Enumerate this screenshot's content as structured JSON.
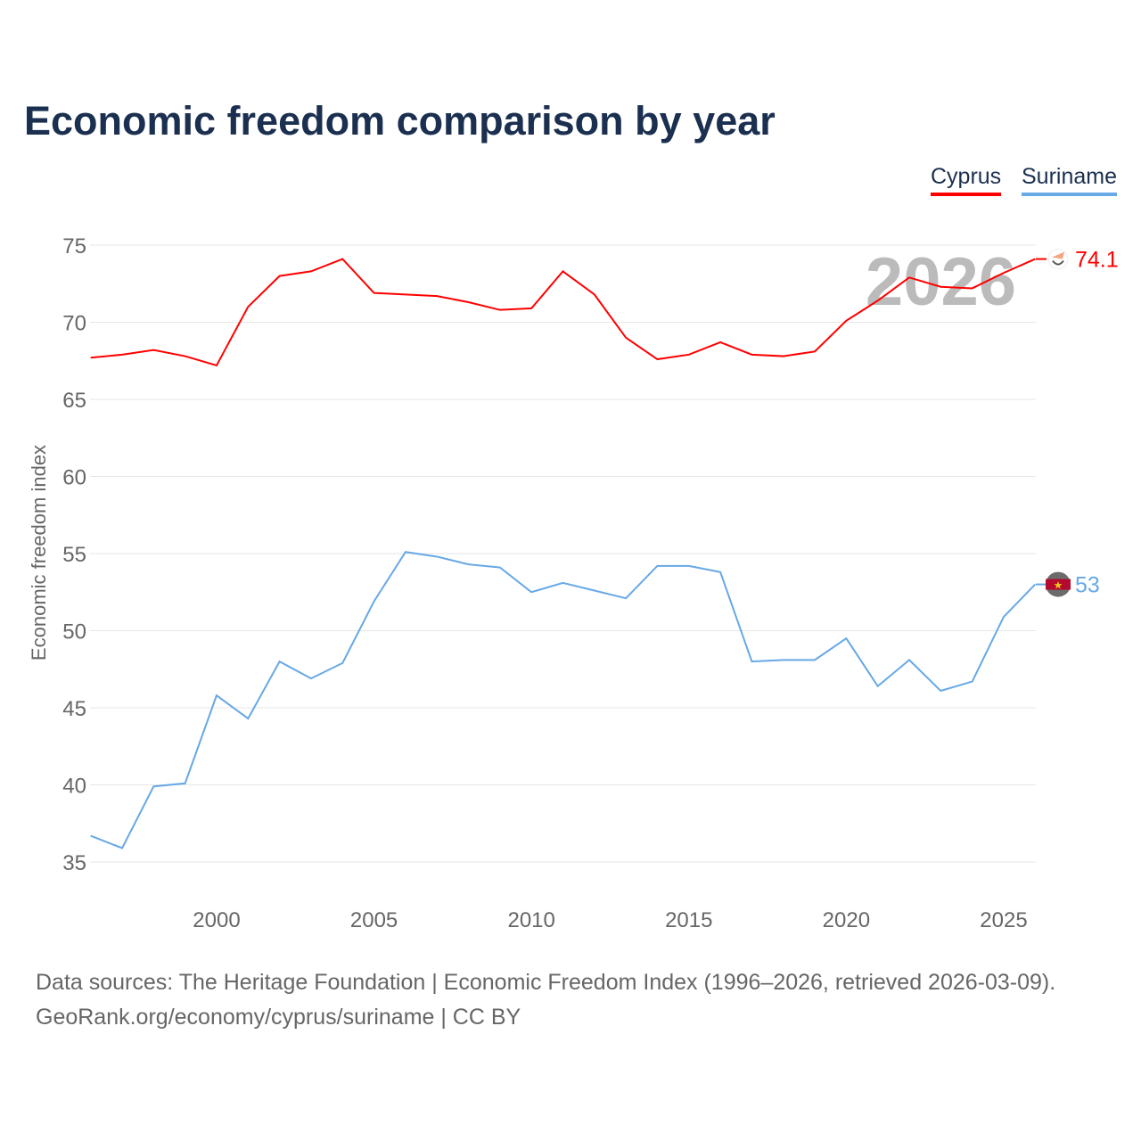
{
  "chart_data": {
    "type": "line",
    "title": "Economic freedom comparison by year",
    "xlabel": "",
    "ylabel": "Economic freedom index",
    "xlim": [
      1996,
      2026
    ],
    "ylim": [
      33,
      76
    ],
    "yticks": [
      35,
      40,
      45,
      50,
      55,
      60,
      65,
      70,
      75
    ],
    "xticks": [
      2000,
      2005,
      2010,
      2015,
      2020,
      2025
    ],
    "grid": true,
    "legend_position": "top-right",
    "watermark_year": "2026",
    "x": [
      1996,
      1997,
      1998,
      1999,
      2000,
      2001,
      2002,
      2003,
      2004,
      2005,
      2006,
      2007,
      2008,
      2009,
      2010,
      2011,
      2012,
      2013,
      2014,
      2015,
      2016,
      2017,
      2018,
      2019,
      2020,
      2021,
      2022,
      2023,
      2024,
      2025,
      2026
    ],
    "series": [
      {
        "name": "Cyprus",
        "color": "#ff0000",
        "end_label": "74.1",
        "values": [
          67.7,
          67.9,
          68.2,
          67.8,
          67.2,
          71.0,
          73.0,
          73.3,
          74.1,
          71.9,
          71.8,
          71.7,
          71.3,
          70.8,
          70.9,
          73.3,
          71.8,
          69.0,
          67.6,
          67.9,
          68.7,
          67.9,
          67.8,
          68.1,
          70.1,
          71.4,
          72.9,
          72.3,
          72.2,
          73.2,
          74.1
        ]
      },
      {
        "name": "Suriname",
        "color": "#67a8e6",
        "end_label": "53",
        "values": [
          36.7,
          35.9,
          39.9,
          40.1,
          45.8,
          44.3,
          48.0,
          46.9,
          47.9,
          51.9,
          55.1,
          54.8,
          54.3,
          54.1,
          52.5,
          53.1,
          52.6,
          52.1,
          54.2,
          54.2,
          53.8,
          48.0,
          48.1,
          48.1,
          49.5,
          46.4,
          48.1,
          46.1,
          46.7,
          50.9,
          53.0
        ]
      }
    ]
  },
  "footer": {
    "line1": "Data sources: The Heritage Foundation | Economic Freedom Index (1996–2026, retrieved 2026-03-09).",
    "line2": "GeoRank.org/economy/cyprus/suriname | CC BY"
  }
}
